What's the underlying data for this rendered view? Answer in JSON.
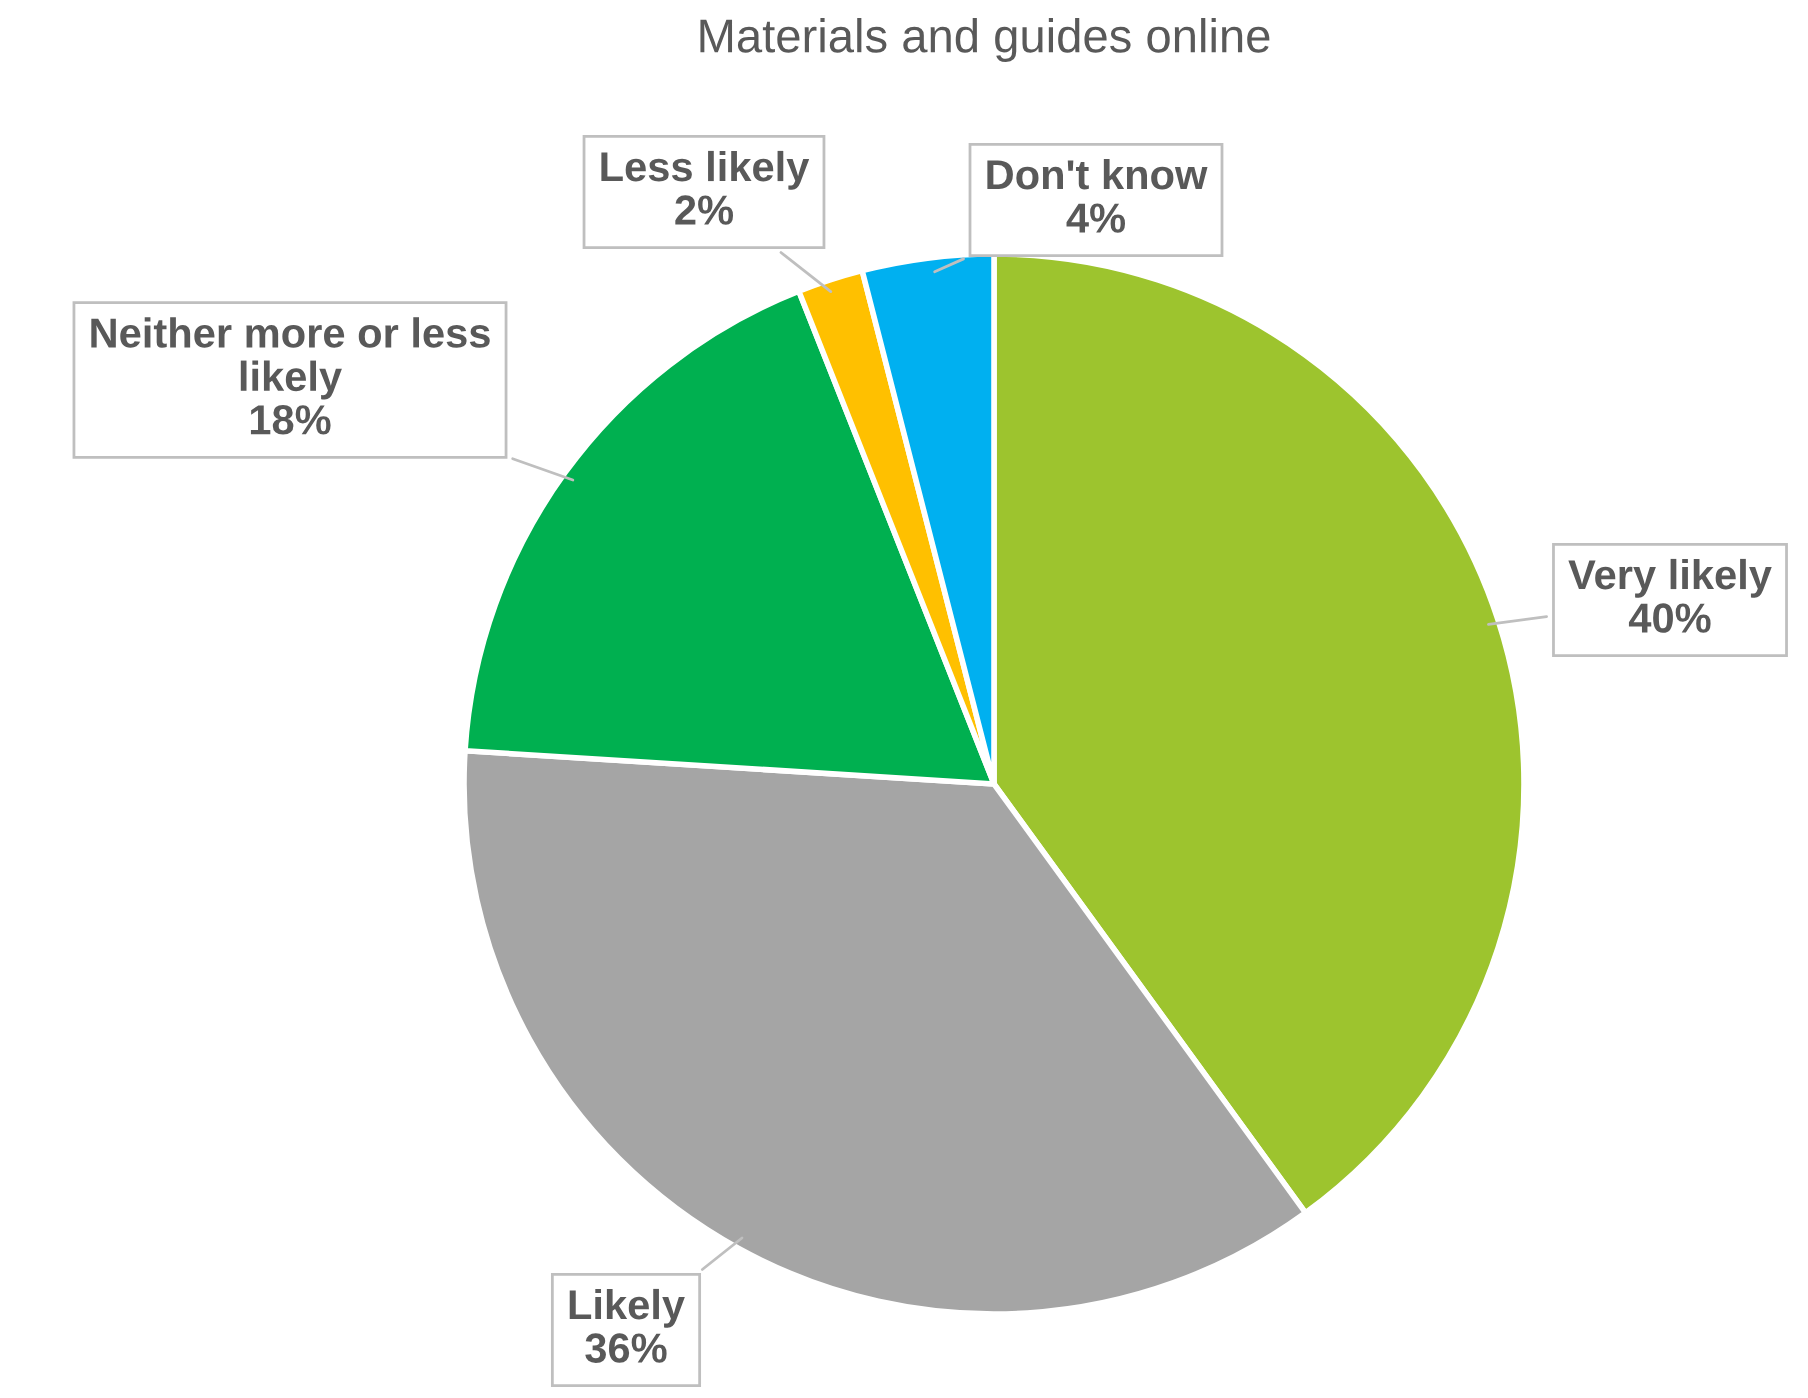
{
  "chart_data": {
    "type": "pie",
    "title": "Materials and guides online",
    "categories": [
      "Very likely",
      "Likely",
      "Neither more or less likely",
      "Less likely",
      "Don't know"
    ],
    "values": [
      40,
      36,
      18,
      2,
      4
    ],
    "value_labels": [
      "40%",
      "36%",
      "18%",
      "2%",
      "4%"
    ],
    "colors": [
      "#9dc42e",
      "#a5a5a5",
      "#00b050",
      "#ffc000",
      "#00b0f0"
    ]
  }
}
